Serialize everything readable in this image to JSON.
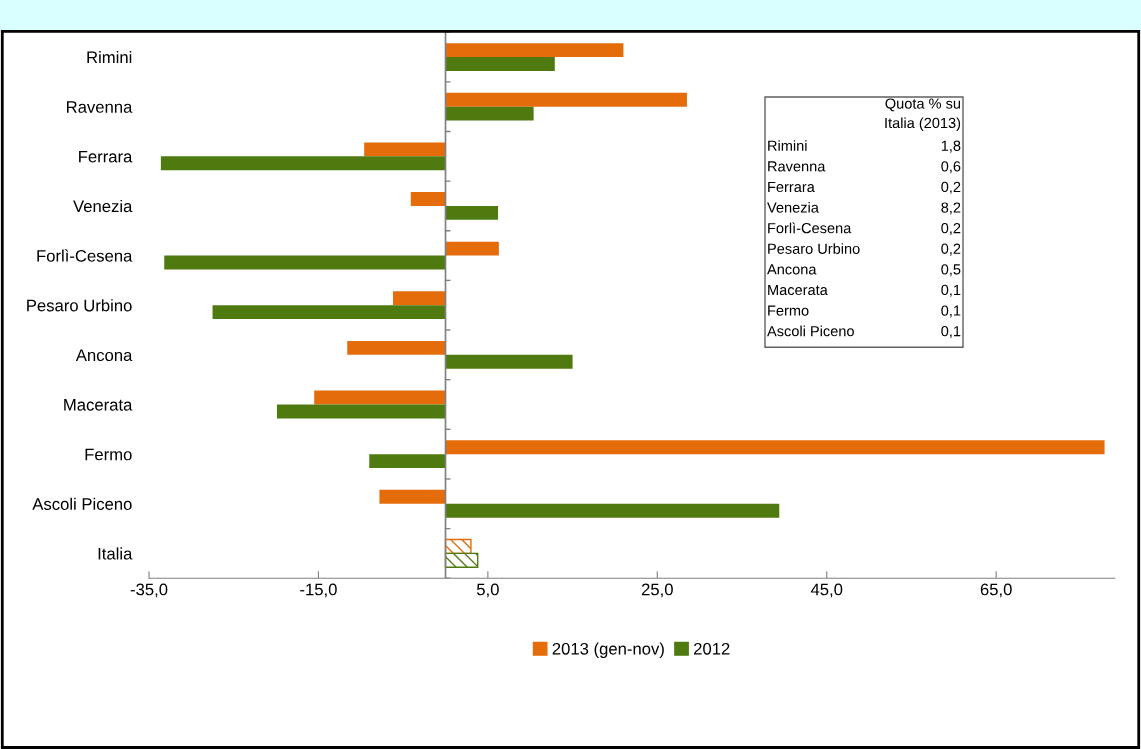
{
  "chart_data": {
    "type": "bar",
    "orientation": "horizontal",
    "categories": [
      "Rimini",
      "Ravenna",
      "Ferrara",
      "Venezia",
      "Forlì-Cesena",
      "Pesaro Urbino",
      "Ancona",
      "Macerata",
      "Fermo",
      "Ascoli Piceno",
      "Italia"
    ],
    "series": [
      {
        "name": "2013 (gen-nov)",
        "color": "#e46c0a",
        "values": [
          21.0,
          28.5,
          -9.6,
          -4.1,
          6.3,
          -6.2,
          -11.6,
          -15.5,
          77.8,
          -7.8,
          3.0
        ]
      },
      {
        "name": "2012",
        "color": "#4f7a0f",
        "values": [
          12.9,
          10.4,
          -33.6,
          6.2,
          -33.2,
          -27.5,
          15.0,
          -19.9,
          -9.0,
          39.4,
          3.8
        ]
      }
    ],
    "xlim": [
      -35,
      79
    ],
    "xticks": [
      {
        "value": -35,
        "label": "-35,0"
      },
      {
        "value": -15,
        "label": "-15,0"
      },
      {
        "value": 5,
        "label": "5,0"
      },
      {
        "value": 25,
        "label": "25,0"
      },
      {
        "value": 45,
        "label": "45,0"
      },
      {
        "value": 65,
        "label": "65,0"
      }
    ],
    "grid": false,
    "legend": "bottom",
    "annotations": [
      "Quota % su\nItalia (2013)",
      "Rimini 1,8",
      "Ravenna 0,6",
      "Ferrara 0,2",
      "Venezia 8,2",
      "Forlì-Cesena 0,2",
      "Pesaro Urbino 0,2",
      "Ancona 0,5",
      "Macerata 0,1",
      "Fermo 0,1",
      "Ascoli Piceno 0,1"
    ]
  }
}
